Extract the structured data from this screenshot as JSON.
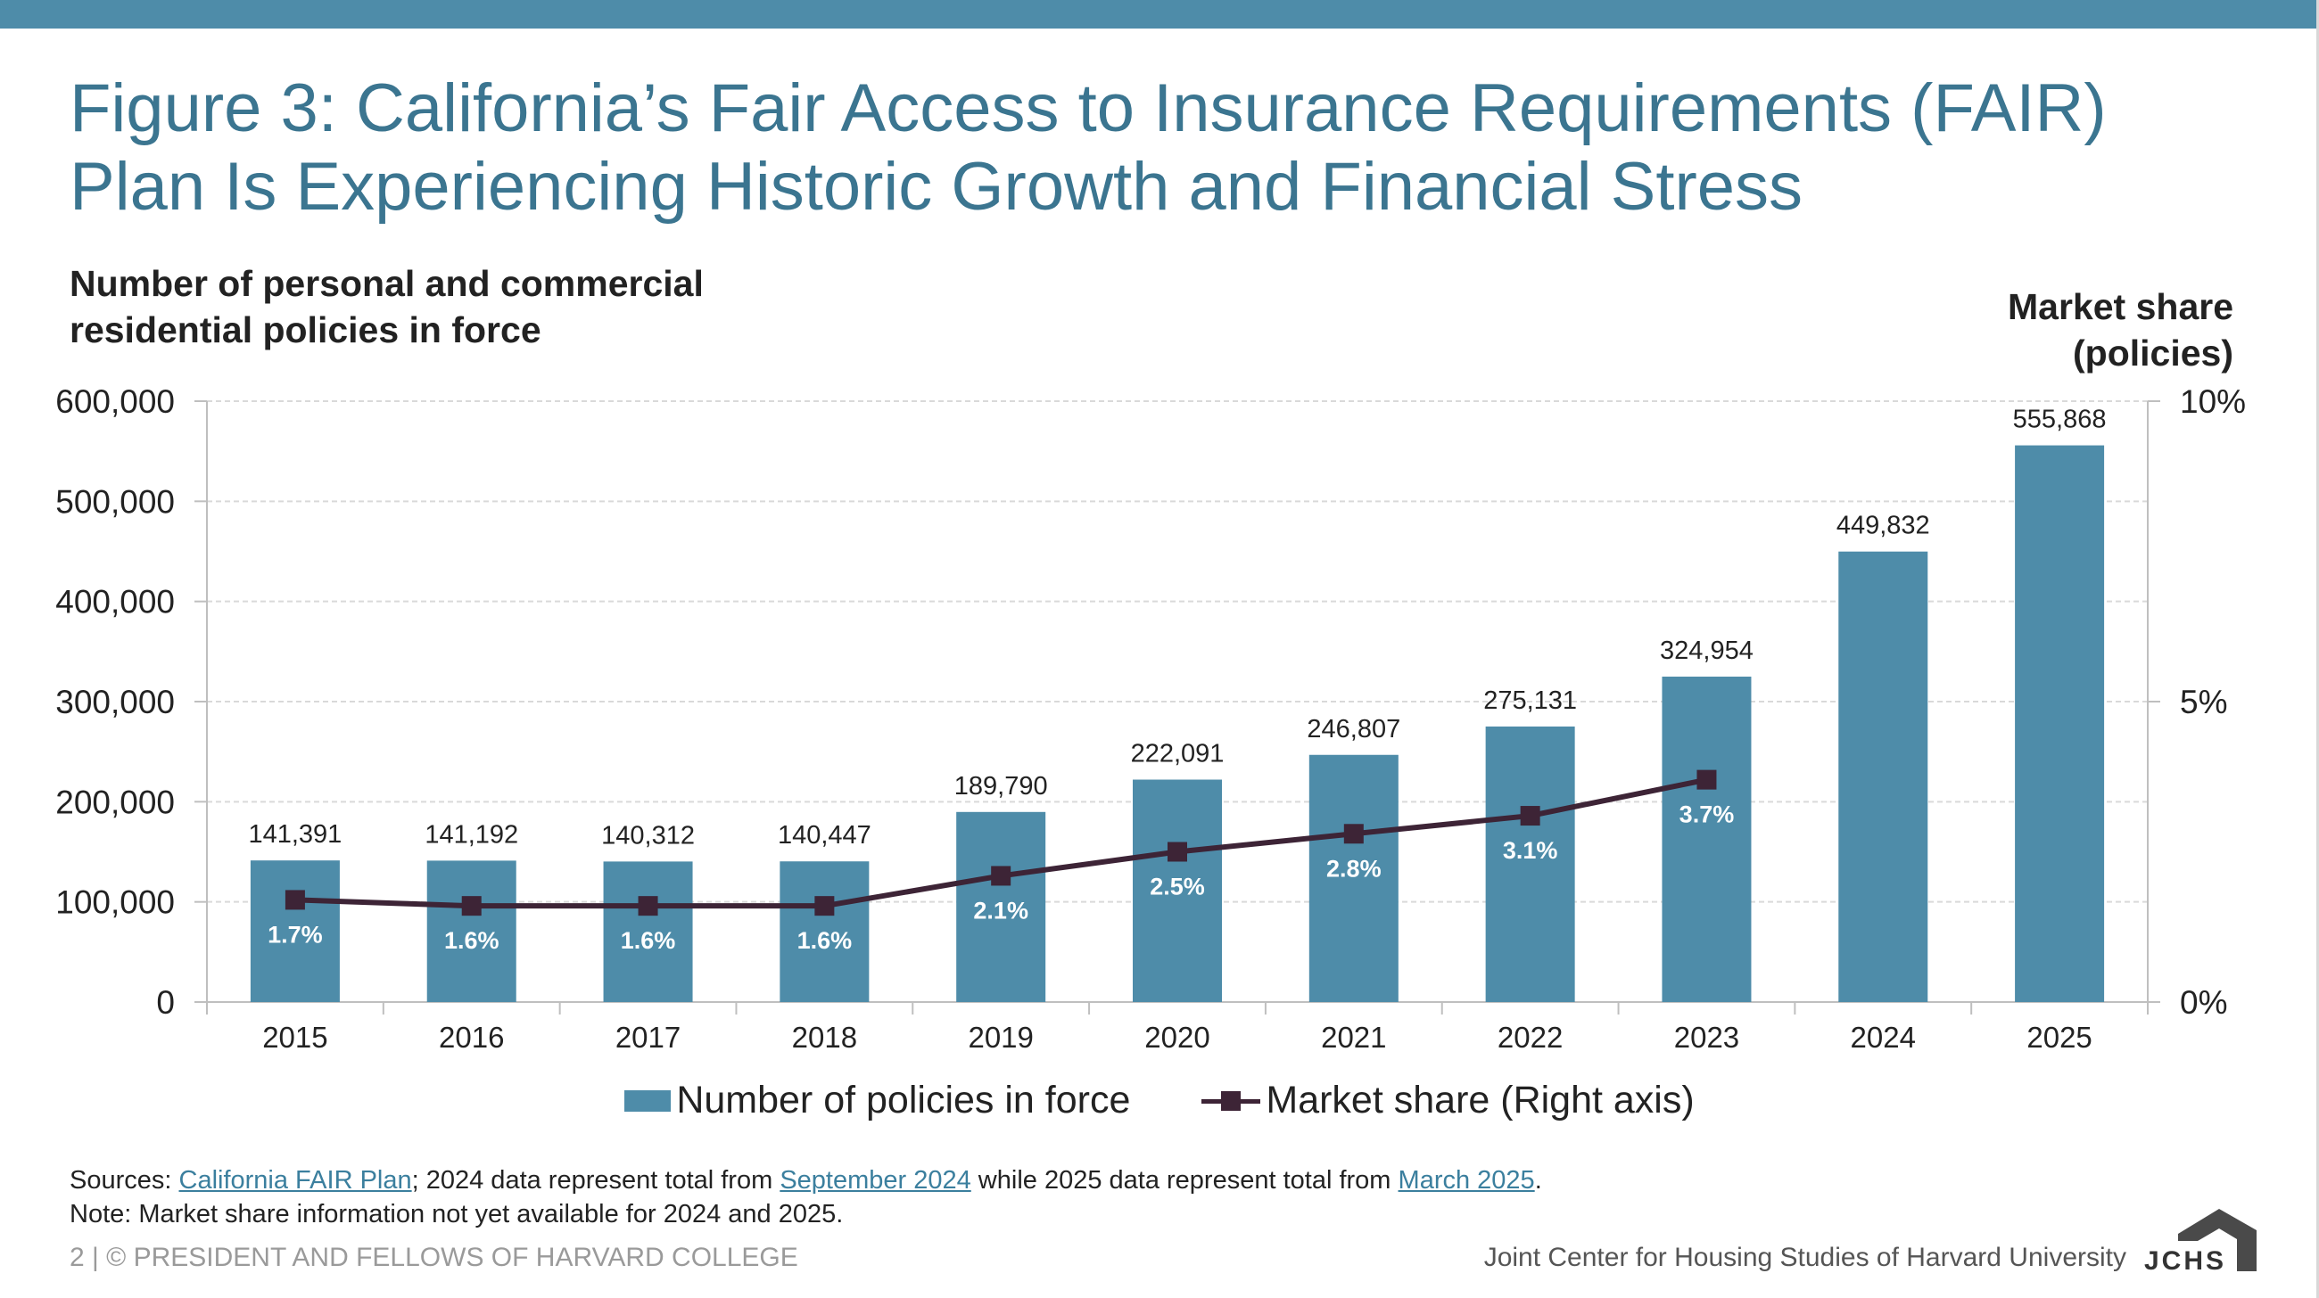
{
  "title_lines": [
    "Figure 3: California’s Fair Access to Insurance Requirements (FAIR)",
    "Plan Is Experiencing Historic Growth and Financial Stress"
  ],
  "left_axis_title_lines": [
    "Number of personal and commercial",
    "residential policies in force"
  ],
  "right_axis_title_lines": [
    "Market share",
    "(policies)"
  ],
  "colors": {
    "bar": "#4e8ca9",
    "line": "#3d2436",
    "title": "#3b7590",
    "topbar": "#4e8ca9"
  },
  "legend": {
    "bar_label": "Number of policies in force",
    "line_label": "Market share (Right axis)"
  },
  "sources": {
    "prefix": "Sources: ",
    "link1": "California FAIR Plan",
    "mid1": "; 2024 data represent total from ",
    "link2": "September 2024",
    "mid2": " while 2025 data represent total from ",
    "link3": "March 2025",
    "suffix": "."
  },
  "note": "Note: Market share information not yet available for 2024 and 2025.",
  "footer": {
    "left": "2 | © PRESIDENT AND FELLOWS OF HARVARD COLLEGE",
    "right": "Joint Center for Housing Studies of Harvard University",
    "logo_text": "JCHS"
  },
  "chart_data": {
    "type": "bar",
    "categories": [
      "2015",
      "2016",
      "2017",
      "2018",
      "2019",
      "2020",
      "2021",
      "2022",
      "2023",
      "2024",
      "2025"
    ],
    "series": [
      {
        "name": "Number of policies in force",
        "type": "bar",
        "axis": "left",
        "values": [
          141391,
          141192,
          140312,
          140447,
          189790,
          222091,
          246807,
          275131,
          324954,
          449832,
          555868
        ],
        "labels": [
          "141,391",
          "141,192",
          "140,312",
          "140,447",
          "189,790",
          "222,091",
          "246,807",
          "275,131",
          "324,954",
          "449,832",
          "555,868"
        ]
      },
      {
        "name": "Market share (Right axis)",
        "type": "line",
        "axis": "right",
        "values": [
          1.7,
          1.6,
          1.6,
          1.6,
          2.1,
          2.5,
          2.8,
          3.1,
          3.7,
          null,
          null
        ],
        "labels": [
          "1.7%",
          "1.6%",
          "1.6%",
          "1.6%",
          "2.1%",
          "2.5%",
          "2.8%",
          "3.1%",
          "3.7%",
          "",
          ""
        ]
      }
    ],
    "y_left": {
      "min": 0,
      "max": 600000,
      "ticks": [
        0,
        100000,
        200000,
        300000,
        400000,
        500000,
        600000
      ],
      "tick_labels": [
        "0",
        "100,000",
        "200,000",
        "300,000",
        "400,000",
        "500,000",
        "600,000"
      ]
    },
    "y_right": {
      "min": 0,
      "max": 10,
      "ticks": [
        0,
        5,
        10
      ],
      "tick_labels": [
        "0%",
        "5%",
        "10%"
      ]
    },
    "grid": true,
    "legend_position": "bottom"
  }
}
